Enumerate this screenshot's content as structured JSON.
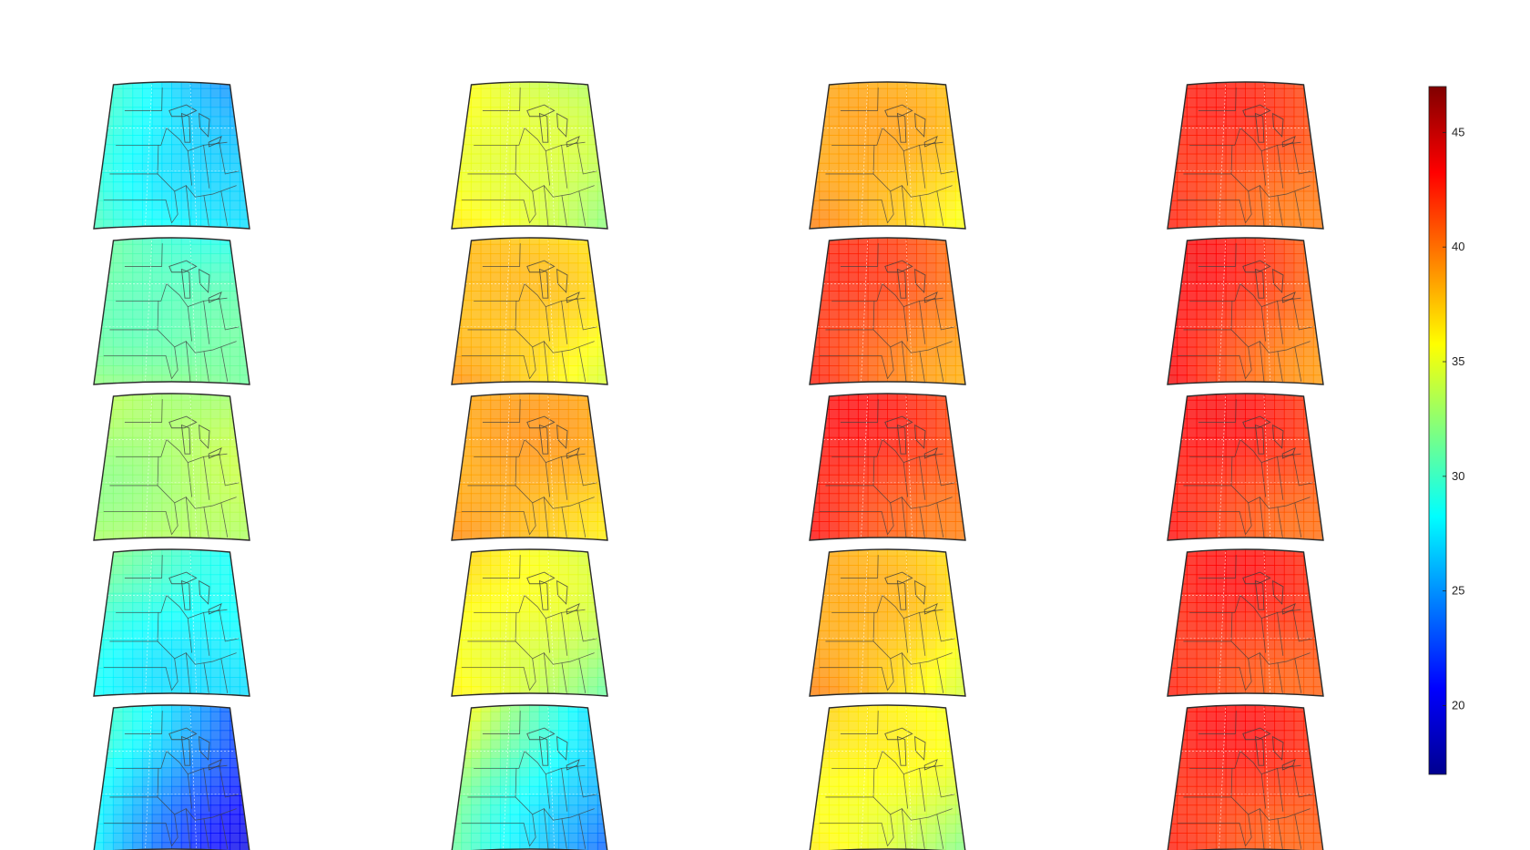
{
  "figure": {
    "grid": {
      "rows": 5,
      "cols": 4
    },
    "panels": [
      [
        {
          "base": 27.5,
          "west": 2.5,
          "east": -1.5,
          "trend": 1
        },
        {
          "base": 34.0,
          "west": 2.5,
          "east": -1.5,
          "trend": 0
        },
        {
          "base": 37.5,
          "west": 1.5,
          "east": -1.0,
          "trend": 0
        },
        {
          "base": 41.5,
          "west": 0.5,
          "east": -0.5,
          "trend": 0
        }
      ],
      [
        {
          "base": 30.5,
          "west": 1.5,
          "east": -0.5,
          "trend": 1
        },
        {
          "base": 37.0,
          "west": 1.5,
          "east": -1.5,
          "trend": 0
        },
        {
          "base": 41.0,
          "west": 1.0,
          "east": -1.5,
          "trend": 0
        },
        {
          "base": 41.5,
          "west": 1.5,
          "east": -1.5,
          "trend": 0
        }
      ],
      [
        {
          "base": 31.5,
          "west": 2.0,
          "east": 1.5,
          "trend": 0
        },
        {
          "base": 38.5,
          "west": 0.0,
          "east": -1.0,
          "trend": 0
        },
        {
          "base": 41.5,
          "west": 1.0,
          "east": -0.5,
          "trend": 0
        },
        {
          "base": 41.5,
          "west": 1.0,
          "east": 0.0,
          "trend": 0
        }
      ],
      [
        {
          "base": 27.0,
          "west": 3.0,
          "east": 1.0,
          "trend": -1
        },
        {
          "base": 34.5,
          "west": 2.5,
          "east": -2.0,
          "trend": -1
        },
        {
          "base": 37.5,
          "west": 1.5,
          "east": -2.0,
          "trend": 0
        },
        {
          "base": 41.5,
          "west": 0.5,
          "east": 0.5,
          "trend": 0
        }
      ],
      [
        {
          "base": 22.5,
          "west": 6.0,
          "east": -1.0,
          "trend": -1
        },
        {
          "base": 29.0,
          "west": 5.0,
          "east": -4.0,
          "trend": -2
        },
        {
          "base": 35.0,
          "west": 2.0,
          "east": -1.5,
          "trend": -1
        },
        {
          "base": 41.5,
          "west": 0.5,
          "east": 0.5,
          "trend": 0
        }
      ]
    ]
  },
  "colorbar": {
    "colormap": "jet",
    "min": 17,
    "max": 47,
    "ticks": [
      "20",
      "25",
      "30",
      "35",
      "40",
      "45"
    ]
  }
}
